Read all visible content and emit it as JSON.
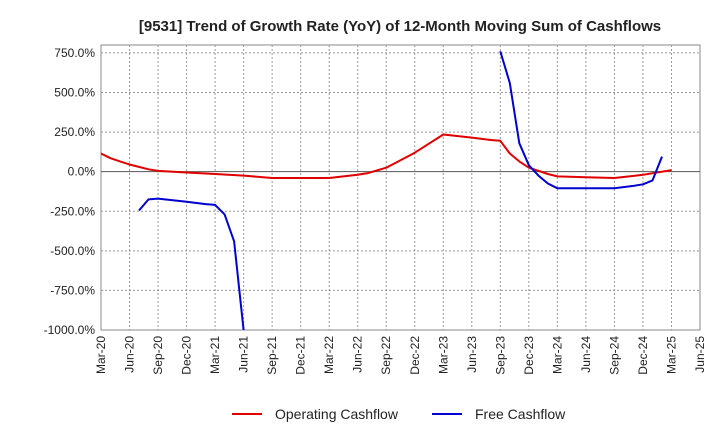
{
  "chart_data": {
    "type": "line",
    "title": "[9531]  Trend of Growth Rate (YoY) of 12-Month Moving Sum of Cashflows",
    "xlabel": "",
    "ylabel": "",
    "ylim": [
      -1000,
      800
    ],
    "y_ticks": [
      750,
      500,
      250,
      0,
      -250,
      -500,
      -750,
      -1000
    ],
    "y_tick_labels": [
      "750.0%",
      "500.0%",
      "250.0%",
      "0.0%",
      "-250.0%",
      "-500.0%",
      "-750.0%",
      "-1000.0%"
    ],
    "x_tick_labels": [
      "Mar-20",
      "Jun-20",
      "Sep-20",
      "Dec-20",
      "Mar-21",
      "Jun-21",
      "Sep-21",
      "Dec-21",
      "Mar-22",
      "Jun-22",
      "Sep-22",
      "Dec-22",
      "Mar-23",
      "Jun-23",
      "Sep-23",
      "Dec-23",
      "Mar-24",
      "Jun-24",
      "Sep-24",
      "Dec-24",
      "Mar-25",
      "Jun-25"
    ],
    "grid": true,
    "legend_position": "bottom",
    "series": [
      {
        "name": "Operating Cashflow",
        "color": "#e00000",
        "points": [
          [
            "2020-03",
            115
          ],
          [
            "2020-04",
            85
          ],
          [
            "2020-05",
            65
          ],
          [
            "2020-06",
            45
          ],
          [
            "2020-07",
            30
          ],
          [
            "2020-08",
            15
          ],
          [
            "2020-09",
            5
          ],
          [
            "2020-12",
            -5
          ],
          [
            "2021-03",
            -15
          ],
          [
            "2021-06",
            -25
          ],
          [
            "2021-09",
            -40
          ],
          [
            "2021-12",
            -40
          ],
          [
            "2022-03",
            -40
          ],
          [
            "2022-06",
            -20
          ],
          [
            "2022-07",
            -10
          ],
          [
            "2022-09",
            25
          ],
          [
            "2022-12",
            120
          ],
          [
            "2023-03",
            235
          ],
          [
            "2023-06",
            215
          ],
          [
            "2023-08",
            200
          ],
          [
            "2023-09",
            195
          ],
          [
            "2023-10",
            115
          ],
          [
            "2023-11",
            65
          ],
          [
            "2023-12",
            25
          ],
          [
            "2024-02",
            -15
          ],
          [
            "2024-03",
            -30
          ],
          [
            "2024-06",
            -35
          ],
          [
            "2024-09",
            -40
          ],
          [
            "2024-12",
            -20
          ],
          [
            "2025-03",
            10
          ]
        ]
      },
      {
        "name": "Free Cashflow",
        "color": "#0000d0",
        "points_before_gap": [
          [
            "2020-07",
            -245
          ],
          [
            "2020-08",
            -175
          ],
          [
            "2020-09",
            -170
          ],
          [
            "2020-12",
            -190
          ],
          [
            "2021-02",
            -205
          ],
          [
            "2021-03",
            -210
          ],
          [
            "2021-04",
            -270
          ],
          [
            "2021-05",
            -440
          ],
          [
            "2021-06",
            -1000
          ]
        ],
        "points_after_gap": [
          [
            "2023-09",
            760
          ],
          [
            "2023-10",
            560
          ],
          [
            "2023-11",
            180
          ],
          [
            "2023-12",
            40
          ],
          [
            "2024-01",
            -25
          ],
          [
            "2024-02",
            -75
          ],
          [
            "2024-03",
            -105
          ],
          [
            "2024-06",
            -105
          ],
          [
            "2024-09",
            -105
          ],
          [
            "2024-11",
            -90
          ],
          [
            "2024-12",
            -80
          ],
          [
            "2025-01",
            -55
          ],
          [
            "2025-02",
            95
          ]
        ]
      }
    ]
  }
}
